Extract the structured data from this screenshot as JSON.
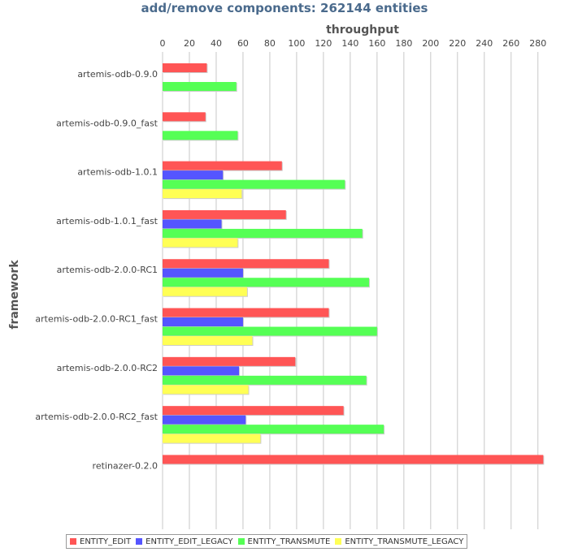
{
  "colors": {
    "title": "#4a6a8c",
    "grid": "#c8c8c8",
    "series": [
      "#ff5555",
      "#5555ff",
      "#55ff55",
      "#ffff55"
    ]
  },
  "chart_data": {
    "type": "bar",
    "orientation": "horizontal",
    "title": "add/remove components: 262144 entities",
    "xlabel": "throughput",
    "ylabel": "framework",
    "xlim": [
      0,
      285
    ],
    "xticks": [
      0,
      20,
      40,
      60,
      80,
      100,
      120,
      140,
      160,
      180,
      200,
      220,
      240,
      260,
      280
    ],
    "x_axis_position": "top",
    "grid": true,
    "legend_position": "bottom",
    "categories": [
      "artemis-odb-0.9.0",
      "artemis-odb-0.9.0_fast",
      "artemis-odb-1.0.1",
      "artemis-odb-1.0.1_fast",
      "artemis-odb-2.0.0-RC1",
      "artemis-odb-2.0.0-RC1_fast",
      "artemis-odb-2.0.0-RC2",
      "artemis-odb-2.0.0-RC2_fast",
      "retinazer-0.2.0"
    ],
    "series": [
      {
        "name": "ENTITY_EDIT",
        "values": [
          33,
          32,
          89,
          92,
          124,
          124,
          99,
          135,
          284
        ]
      },
      {
        "name": "ENTITY_EDIT_LEGACY",
        "values": [
          null,
          null,
          45,
          44,
          60,
          60,
          57,
          62,
          null
        ]
      },
      {
        "name": "ENTITY_TRANSMUTE",
        "values": [
          55,
          56,
          136,
          149,
          154,
          160,
          152,
          165,
          null
        ]
      },
      {
        "name": "ENTITY_TRANSMUTE_LEGACY",
        "values": [
          null,
          null,
          59,
          56,
          63,
          67,
          64,
          73,
          null
        ]
      }
    ]
  }
}
